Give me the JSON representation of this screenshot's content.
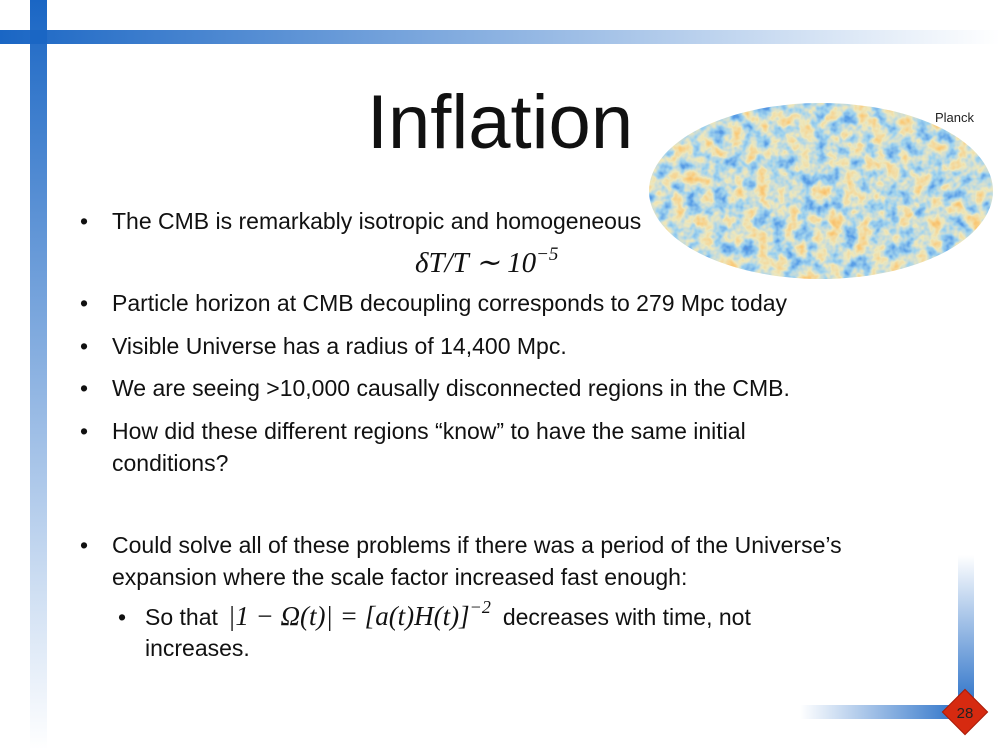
{
  "title": "Inflation",
  "image_label": "Planck",
  "bullets": [
    [
      "The CMB is remarkably isotropic and homogeneous"
    ],
    [
      "Particle horizon at CMB decoupling corresponds to 279 Mpc today"
    ],
    [
      "Visible Universe has a radius of 14,400 Mpc."
    ],
    [
      "We are seeing >10,000 causally disconnected regions in the CMB."
    ],
    [
      "How did these different regions “know” to have the same initial",
      "conditions?"
    ],
    [
      "Could solve all of these problems if there was a period of the Universe’s",
      "expansion where the scale factor increased fast enough:"
    ]
  ],
  "equation": {
    "base": "δT/T ∼ 10",
    "exponent": "−5"
  },
  "sub_bullet": {
    "prefix": "So that",
    "math_base": "|1 − Ω(t)| = [a(t)H(t)]",
    "math_exponent": "−2",
    "suffix": "decreases with time, not",
    "continuation": "increases."
  },
  "page_number": "28"
}
